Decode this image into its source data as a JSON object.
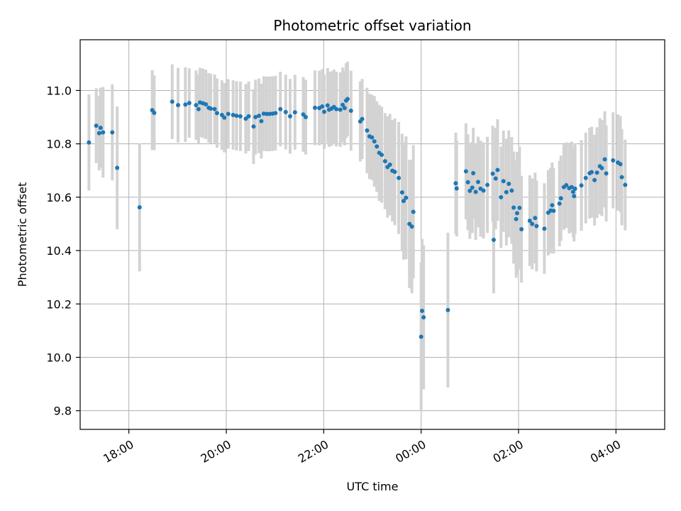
{
  "chart_data": {
    "type": "scatter",
    "title": "Photometric offset variation",
    "xlabel": "UTC time",
    "ylabel": "Photometric offset",
    "x_unit": "hours since 00:00 UTC (day boundary)",
    "xlim": [
      -7.0,
      5.0
    ],
    "ylim": [
      9.73,
      11.19
    ],
    "x_ticks": [
      {
        "value": -6,
        "label": "18:00"
      },
      {
        "value": -4,
        "label": "20:00"
      },
      {
        "value": -2,
        "label": "22:00"
      },
      {
        "value": 0,
        "label": "00:00"
      },
      {
        "value": 2,
        "label": "02:00"
      },
      {
        "value": 4,
        "label": "04:00"
      }
    ],
    "y_ticks": [
      {
        "value": 9.8,
        "label": "9.8"
      },
      {
        "value": 10.0,
        "label": "10.0"
      },
      {
        "value": 10.2,
        "label": "10.2"
      },
      {
        "value": 10.4,
        "label": "10.4"
      },
      {
        "value": 10.6,
        "label": "10.6"
      },
      {
        "value": 10.8,
        "label": "10.8"
      },
      {
        "value": 11.0,
        "label": "11.0"
      }
    ],
    "grid": true,
    "marker_color": "#1f77b4",
    "errorbar_color": "#d3d3d3",
    "points": [
      [
        -6.82,
        10.805,
        0.18
      ],
      [
        -6.67,
        10.868,
        0.14
      ],
      [
        -6.61,
        10.84,
        0.14
      ],
      [
        -6.58,
        10.86,
        0.15
      ],
      [
        -6.53,
        10.843,
        0.17
      ],
      [
        -6.34,
        10.843,
        0.18
      ],
      [
        -6.24,
        10.71,
        0.23
      ],
      [
        -5.78,
        10.562,
        0.24
      ],
      [
        -5.52,
        10.926,
        0.15
      ],
      [
        -5.48,
        10.916,
        0.14
      ],
      [
        -5.11,
        10.958,
        0.14
      ],
      [
        -4.99,
        10.945,
        0.14
      ],
      [
        -4.84,
        10.947,
        0.14
      ],
      [
        -4.76,
        10.953,
        0.13
      ],
      [
        -4.62,
        10.945,
        0.13
      ],
      [
        -4.57,
        10.93,
        0.13
      ],
      [
        -4.54,
        10.955,
        0.13
      ],
      [
        -4.48,
        10.952,
        0.13
      ],
      [
        -4.42,
        10.948,
        0.13
      ],
      [
        -4.36,
        10.935,
        0.13
      ],
      [
        -4.32,
        10.932,
        0.13
      ],
      [
        -4.24,
        10.93,
        0.13
      ],
      [
        -4.19,
        10.915,
        0.13
      ],
      [
        -4.09,
        10.908,
        0.13
      ],
      [
        -4.04,
        10.898,
        0.13
      ],
      [
        -3.96,
        10.912,
        0.13
      ],
      [
        -3.86,
        10.908,
        0.13
      ],
      [
        -3.79,
        10.905,
        0.13
      ],
      [
        -3.71,
        10.903,
        0.13
      ],
      [
        -3.6,
        10.894,
        0.13
      ],
      [
        -3.54,
        10.903,
        0.13
      ],
      [
        -3.44,
        10.865,
        0.14
      ],
      [
        -3.4,
        10.9,
        0.14
      ],
      [
        -3.33,
        10.905,
        0.14
      ],
      [
        -3.28,
        10.885,
        0.14
      ],
      [
        -3.23,
        10.913,
        0.14
      ],
      [
        -3.17,
        10.912,
        0.14
      ],
      [
        -3.11,
        10.912,
        0.14
      ],
      [
        -3.05,
        10.913,
        0.14
      ],
      [
        -2.99,
        10.915,
        0.14
      ],
      [
        -2.89,
        10.93,
        0.14
      ],
      [
        -2.78,
        10.919,
        0.14
      ],
      [
        -2.69,
        10.903,
        0.14
      ],
      [
        -2.59,
        10.918,
        0.14
      ],
      [
        -2.42,
        10.91,
        0.14
      ],
      [
        -2.37,
        10.9,
        0.14
      ],
      [
        -2.18,
        10.935,
        0.14
      ],
      [
        -2.09,
        10.934,
        0.14
      ],
      [
        -2.03,
        10.94,
        0.14
      ],
      [
        -1.99,
        10.92,
        0.14
      ],
      [
        -1.92,
        10.944,
        0.14
      ],
      [
        -1.89,
        10.928,
        0.14
      ],
      [
        -1.84,
        10.932,
        0.14
      ],
      [
        -1.79,
        10.938,
        0.14
      ],
      [
        -1.74,
        10.93,
        0.14
      ],
      [
        -1.66,
        10.928,
        0.14
      ],
      [
        -1.61,
        10.946,
        0.14
      ],
      [
        -1.57,
        10.934,
        0.14
      ],
      [
        -1.54,
        10.962,
        0.14
      ],
      [
        -1.51,
        10.968,
        0.14
      ],
      [
        -1.44,
        10.924,
        0.15
      ],
      [
        -1.25,
        10.884,
        0.15
      ],
      [
        -1.21,
        10.893,
        0.15
      ],
      [
        -1.11,
        10.85,
        0.16
      ],
      [
        -1.06,
        10.828,
        0.16
      ],
      [
        -1.01,
        10.824,
        0.16
      ],
      [
        -0.96,
        10.809,
        0.17
      ],
      [
        -0.91,
        10.79,
        0.17
      ],
      [
        -0.86,
        10.766,
        0.18
      ],
      [
        -0.81,
        10.759,
        0.18
      ],
      [
        -0.74,
        10.735,
        0.18
      ],
      [
        -0.69,
        10.713,
        0.19
      ],
      [
        -0.64,
        10.722,
        0.19
      ],
      [
        -0.59,
        10.699,
        0.19
      ],
      [
        -0.54,
        10.695,
        0.2
      ],
      [
        -0.46,
        10.672,
        0.21
      ],
      [
        -0.39,
        10.618,
        0.22
      ],
      [
        -0.36,
        10.586,
        0.22
      ],
      [
        -0.31,
        10.598,
        0.23
      ],
      [
        -0.24,
        10.5,
        0.24
      ],
      [
        -0.19,
        10.49,
        0.25
      ],
      [
        -0.16,
        10.545,
        0.25
      ],
      [
        0.0,
        10.077,
        0.28
      ],
      [
        0.02,
        10.174,
        0.27
      ],
      [
        0.05,
        10.15,
        0.27
      ],
      [
        0.55,
        10.177,
        0.29
      ],
      [
        0.71,
        10.652,
        0.19
      ],
      [
        0.73,
        10.633,
        0.18
      ],
      [
        0.92,
        10.697,
        0.18
      ],
      [
        0.96,
        10.656,
        0.18
      ],
      [
        1.0,
        10.624,
        0.18
      ],
      [
        1.05,
        10.636,
        0.17
      ],
      [
        1.07,
        10.69,
        0.17
      ],
      [
        1.12,
        10.62,
        0.18
      ],
      [
        1.17,
        10.657,
        0.17
      ],
      [
        1.22,
        10.632,
        0.18
      ],
      [
        1.28,
        10.625,
        0.18
      ],
      [
        1.36,
        10.646,
        0.18
      ],
      [
        1.47,
        10.688,
        0.18
      ],
      [
        1.49,
        10.44,
        0.2
      ],
      [
        1.53,
        10.67,
        0.19
      ],
      [
        1.57,
        10.702,
        0.19
      ],
      [
        1.64,
        10.6,
        0.19
      ],
      [
        1.69,
        10.66,
        0.19
      ],
      [
        1.75,
        10.619,
        0.2
      ],
      [
        1.8,
        10.65,
        0.2
      ],
      [
        1.86,
        10.625,
        0.2
      ],
      [
        1.9,
        10.561,
        0.21
      ],
      [
        1.95,
        10.518,
        0.22
      ],
      [
        1.97,
        10.54,
        0.23
      ],
      [
        2.02,
        10.56,
        0.23
      ],
      [
        2.06,
        10.48,
        0.2
      ],
      [
        2.23,
        10.512,
        0.17
      ],
      [
        2.28,
        10.5,
        0.17
      ],
      [
        2.34,
        10.522,
        0.17
      ],
      [
        2.37,
        10.492,
        0.17
      ],
      [
        2.53,
        10.482,
        0.17
      ],
      [
        2.61,
        10.542,
        0.16
      ],
      [
        2.66,
        10.55,
        0.16
      ],
      [
        2.69,
        10.57,
        0.16
      ],
      [
        2.72,
        10.549,
        0.16
      ],
      [
        2.84,
        10.576,
        0.16
      ],
      [
        2.87,
        10.596,
        0.16
      ],
      [
        2.93,
        10.638,
        0.16
      ],
      [
        2.98,
        10.645,
        0.16
      ],
      [
        3.04,
        10.634,
        0.17
      ],
      [
        3.09,
        10.638,
        0.17
      ],
      [
        3.12,
        10.62,
        0.17
      ],
      [
        3.14,
        10.604,
        0.17
      ],
      [
        3.16,
        10.632,
        0.17
      ],
      [
        3.29,
        10.644,
        0.17
      ],
      [
        3.38,
        10.672,
        0.17
      ],
      [
        3.46,
        10.69,
        0.17
      ],
      [
        3.5,
        10.694,
        0.17
      ],
      [
        3.56,
        10.664,
        0.17
      ],
      [
        3.61,
        10.692,
        0.17
      ],
      [
        3.67,
        10.716,
        0.18
      ],
      [
        3.71,
        10.709,
        0.18
      ],
      [
        3.77,
        10.742,
        0.18
      ],
      [
        3.8,
        10.689,
        0.18
      ],
      [
        3.94,
        10.738,
        0.18
      ],
      [
        4.04,
        10.73,
        0.18
      ],
      [
        4.09,
        10.724,
        0.18
      ],
      [
        4.12,
        10.675,
        0.18
      ],
      [
        4.19,
        10.646,
        0.17
      ]
    ]
  }
}
